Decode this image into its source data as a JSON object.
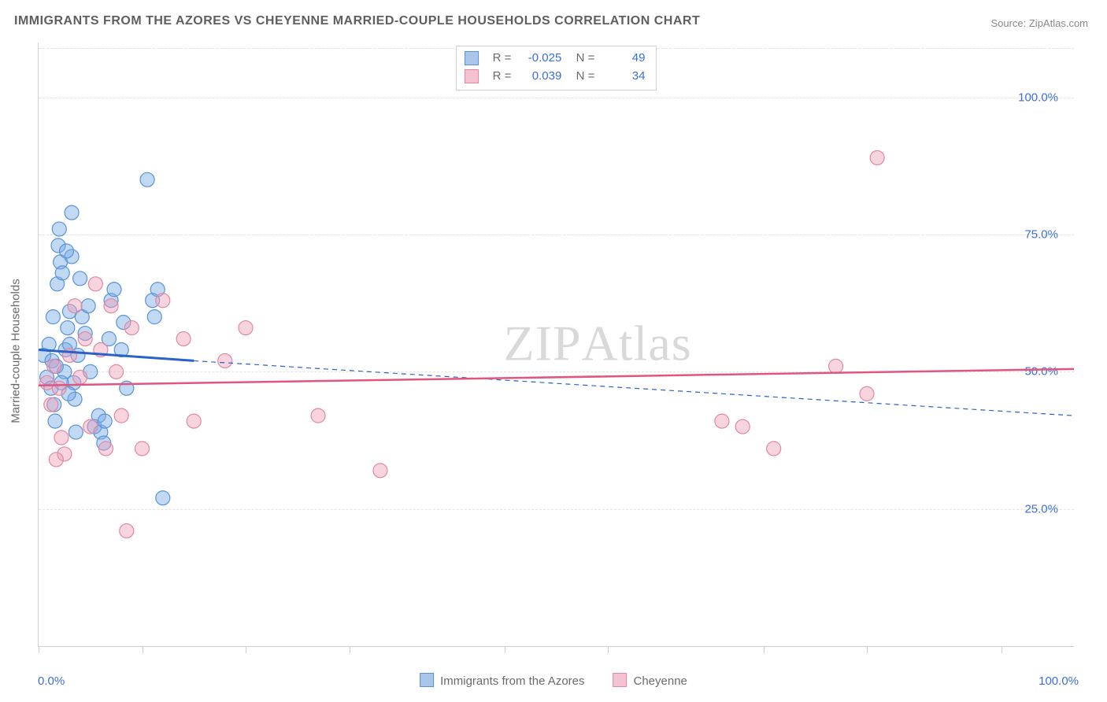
{
  "title": "IMMIGRANTS FROM THE AZORES VS CHEYENNE MARRIED-COUPLE HOUSEHOLDS CORRELATION CHART",
  "source": "Source: ZipAtlas.com",
  "watermark_left": "ZIP",
  "watermark_right": "Atlas",
  "ylabel": "Married-couple Households",
  "chart": {
    "type": "scatter",
    "background_color": "#ffffff",
    "grid_color": "#e4e4e4",
    "axis_color": "#cfcfcf",
    "xlim": [
      0,
      100
    ],
    "ylim": [
      0,
      110
    ],
    "x_min_label": "0.0%",
    "x_max_label": "100.0%",
    "y_ticks": [
      25,
      50,
      75,
      100
    ],
    "y_tick_labels": [
      "25.0%",
      "50.0%",
      "75.0%",
      "100.0%"
    ],
    "x_tick_positions": [
      0,
      10,
      20,
      30,
      45,
      55,
      70,
      80,
      93
    ],
    "label_color": "#3b6fd6",
    "text_color": "#6a6a6a",
    "title_color": "#5f5f5f",
    "title_fontsize": 16,
    "label_fontsize": 15,
    "marker_radius": 9,
    "marker_stroke_width": 1.2,
    "series": [
      {
        "name": "Immigrants from the Azores",
        "fill": "rgba(120,170,230,0.45)",
        "stroke": "#5a93d6",
        "swatch_fill": "#a8c7eb",
        "swatch_border": "#5a93d6",
        "R": "-0.025",
        "N": "49",
        "trend_solid": {
          "x1": 0,
          "y1": 54.0,
          "x2": 15,
          "y2": 52.0,
          "color": "#2a62c7",
          "width": 3
        },
        "trend_dashed": {
          "x1": 15,
          "y1": 52.0,
          "x2": 100,
          "y2": 42.0,
          "color": "#2a62c7",
          "width": 1.2,
          "dash": "6,5"
        },
        "points": [
          [
            0.5,
            53
          ],
          [
            0.8,
            49
          ],
          [
            1.0,
            55
          ],
          [
            1.2,
            47
          ],
          [
            1.3,
            52
          ],
          [
            1.4,
            60
          ],
          [
            1.5,
            44
          ],
          [
            1.6,
            41
          ],
          [
            1.8,
            66
          ],
          [
            1.9,
            73
          ],
          [
            2.0,
            76
          ],
          [
            2.1,
            70
          ],
          [
            2.3,
            68
          ],
          [
            2.5,
            50
          ],
          [
            2.6,
            54
          ],
          [
            2.8,
            58
          ],
          [
            3.0,
            61
          ],
          [
            3.0,
            55
          ],
          [
            3.2,
            71
          ],
          [
            3.4,
            48
          ],
          [
            3.5,
            45
          ],
          [
            3.6,
            39
          ],
          [
            3.8,
            53
          ],
          [
            4.0,
            67
          ],
          [
            4.2,
            60
          ],
          [
            4.5,
            57
          ],
          [
            5.0,
            50
          ],
          [
            5.4,
            40
          ],
          [
            5.8,
            42
          ],
          [
            6.0,
            39
          ],
          [
            6.3,
            37
          ],
          [
            6.4,
            41
          ],
          [
            6.8,
            56
          ],
          [
            7.0,
            63
          ],
          [
            7.3,
            65
          ],
          [
            8.0,
            54
          ],
          [
            8.2,
            59
          ],
          [
            8.5,
            47
          ],
          [
            10.5,
            85
          ],
          [
            11.0,
            63
          ],
          [
            11.2,
            60
          ],
          [
            11.5,
            65
          ],
          [
            12.0,
            27
          ],
          [
            3.2,
            79
          ],
          [
            2.7,
            72
          ],
          [
            1.7,
            51
          ],
          [
            2.2,
            48
          ],
          [
            2.9,
            46
          ],
          [
            4.8,
            62
          ]
        ]
      },
      {
        "name": "Cheyenne",
        "fill": "rgba(240,160,185,0.45)",
        "stroke": "#e188a4",
        "swatch_fill": "#f3c3d2",
        "swatch_border": "#e188a4",
        "R": "0.039",
        "N": "34",
        "trend_solid": {
          "x1": 0,
          "y1": 47.5,
          "x2": 100,
          "y2": 50.5,
          "color": "#e0567e",
          "width": 2.5
        },
        "points": [
          [
            0.8,
            48
          ],
          [
            1.2,
            44
          ],
          [
            1.5,
            51
          ],
          [
            2.0,
            47
          ],
          [
            2.5,
            35
          ],
          [
            3.0,
            53
          ],
          [
            3.5,
            62
          ],
          [
            4.0,
            49
          ],
          [
            4.5,
            56
          ],
          [
            5.0,
            40
          ],
          [
            5.5,
            66
          ],
          [
            6.0,
            54
          ],
          [
            6.5,
            36
          ],
          [
            7.0,
            62
          ],
          [
            7.5,
            50
          ],
          [
            8.0,
            42
          ],
          [
            8.5,
            21
          ],
          [
            9.0,
            58
          ],
          [
            10.0,
            36
          ],
          [
            12.0,
            63
          ],
          [
            14.0,
            56
          ],
          [
            15.0,
            41
          ],
          [
            18.0,
            52
          ],
          [
            20.0,
            58
          ],
          [
            27.0,
            42
          ],
          [
            33.0,
            32
          ],
          [
            66.0,
            41
          ],
          [
            68.0,
            40
          ],
          [
            71.0,
            36
          ],
          [
            77.0,
            51
          ],
          [
            80.0,
            46
          ],
          [
            81.0,
            89
          ],
          [
            2.2,
            38
          ],
          [
            1.7,
            34
          ]
        ]
      }
    ]
  },
  "bottom_legend": {
    "items": [
      {
        "label": "Immigrants from the Azores",
        "fill": "#a8c7eb",
        "border": "#5a93d6"
      },
      {
        "label": "Cheyenne",
        "fill": "#f3c3d2",
        "border": "#e188a4"
      }
    ]
  }
}
